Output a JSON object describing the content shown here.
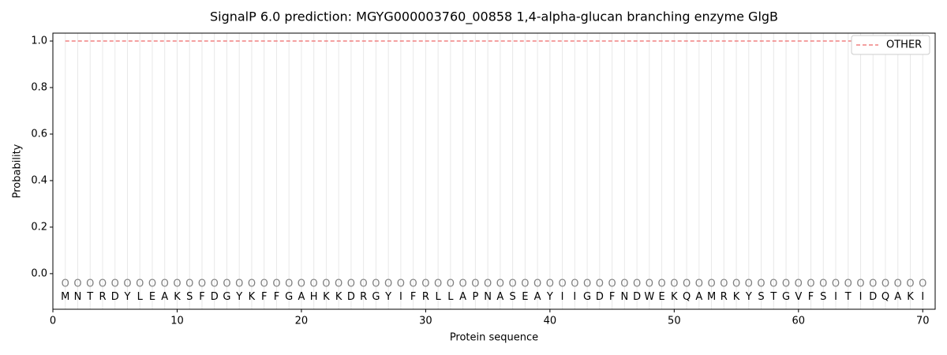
{
  "chart_data": {
    "type": "line",
    "title": "SignalP 6.0 prediction: MGYG000003760_00858 1,4-alpha-glucan branching enzyme GlgB",
    "x_label": "Protein sequence",
    "y_label": "Probability",
    "x": [
      1,
      2,
      3,
      4,
      5,
      6,
      7,
      8,
      9,
      10,
      11,
      12,
      13,
      14,
      15,
      16,
      17,
      18,
      19,
      20,
      21,
      22,
      23,
      24,
      25,
      26,
      27,
      28,
      29,
      30,
      31,
      32,
      33,
      34,
      35,
      36,
      37,
      38,
      39,
      40,
      41,
      42,
      43,
      44,
      45,
      46,
      47,
      48,
      49,
      50,
      51,
      52,
      53,
      54,
      55,
      56,
      57,
      58,
      59,
      60,
      61,
      62,
      63,
      64,
      65,
      66,
      67,
      68,
      69,
      70
    ],
    "sequence": [
      "M",
      "N",
      "T",
      "R",
      "D",
      "Y",
      "L",
      "E",
      "A",
      "K",
      "S",
      "F",
      "D",
      "G",
      "Y",
      "K",
      "F",
      "F",
      "G",
      "A",
      "H",
      "K",
      "K",
      "D",
      "R",
      "G",
      "Y",
      "I",
      "F",
      "R",
      "L",
      "L",
      "A",
      "P",
      "N",
      "A",
      "S",
      "E",
      "A",
      "Y",
      "I",
      "I",
      "G",
      "D",
      "F",
      "N",
      "D",
      "W",
      "E",
      "K",
      "Q",
      "A",
      "M",
      "R",
      "K",
      "Y",
      "S",
      "T",
      "G",
      "V",
      "F",
      "S",
      "I",
      "T",
      "I",
      "D",
      "Q",
      "A",
      "K",
      "I"
    ],
    "predicted_labels": [
      "O",
      "O",
      "O",
      "O",
      "O",
      "O",
      "O",
      "O",
      "O",
      "O",
      "O",
      "O",
      "O",
      "O",
      "O",
      "O",
      "O",
      "O",
      "O",
      "O",
      "O",
      "O",
      "O",
      "O",
      "O",
      "O",
      "O",
      "O",
      "O",
      "O",
      "O",
      "O",
      "O",
      "O",
      "O",
      "O",
      "O",
      "O",
      "O",
      "O",
      "O",
      "O",
      "O",
      "O",
      "O",
      "O",
      "O",
      "O",
      "O",
      "O",
      "O",
      "O",
      "O",
      "O",
      "O",
      "O",
      "O",
      "O",
      "O",
      "O",
      "O",
      "O",
      "O",
      "O",
      "O",
      "O",
      "O",
      "O",
      "O",
      "O"
    ],
    "series": [
      {
        "name": "OTHER",
        "color": "#f08080",
        "dashed": true,
        "values": [
          1,
          1,
          1,
          1,
          1,
          1,
          1,
          1,
          1,
          1,
          1,
          1,
          1,
          1,
          1,
          1,
          1,
          1,
          1,
          1,
          1,
          1,
          1,
          1,
          1,
          1,
          1,
          1,
          1,
          1,
          1,
          1,
          1,
          1,
          1,
          1,
          1,
          1,
          1,
          1,
          1,
          1,
          1,
          1,
          1,
          1,
          1,
          1,
          1,
          1,
          1,
          1,
          1,
          1,
          1,
          1,
          1,
          1,
          1,
          1,
          1,
          1,
          1,
          1,
          1,
          1,
          1,
          1,
          1,
          1
        ]
      }
    ],
    "xlim": [
      0,
      71
    ],
    "ylim": [
      -0.153,
      1.034
    ],
    "xticks": [
      0,
      10,
      20,
      30,
      40,
      50,
      60,
      70
    ],
    "yticks": [
      {
        "value": 0,
        "label": "0.0"
      },
      {
        "value": 0.2,
        "label": "0.2"
      },
      {
        "value": 0.4,
        "label": "0.4"
      },
      {
        "value": 0.6,
        "label": "0.6"
      },
      {
        "value": 0.8,
        "label": "0.8"
      },
      {
        "value": 1,
        "label": "1.0"
      }
    ],
    "legend": "upper right"
  }
}
